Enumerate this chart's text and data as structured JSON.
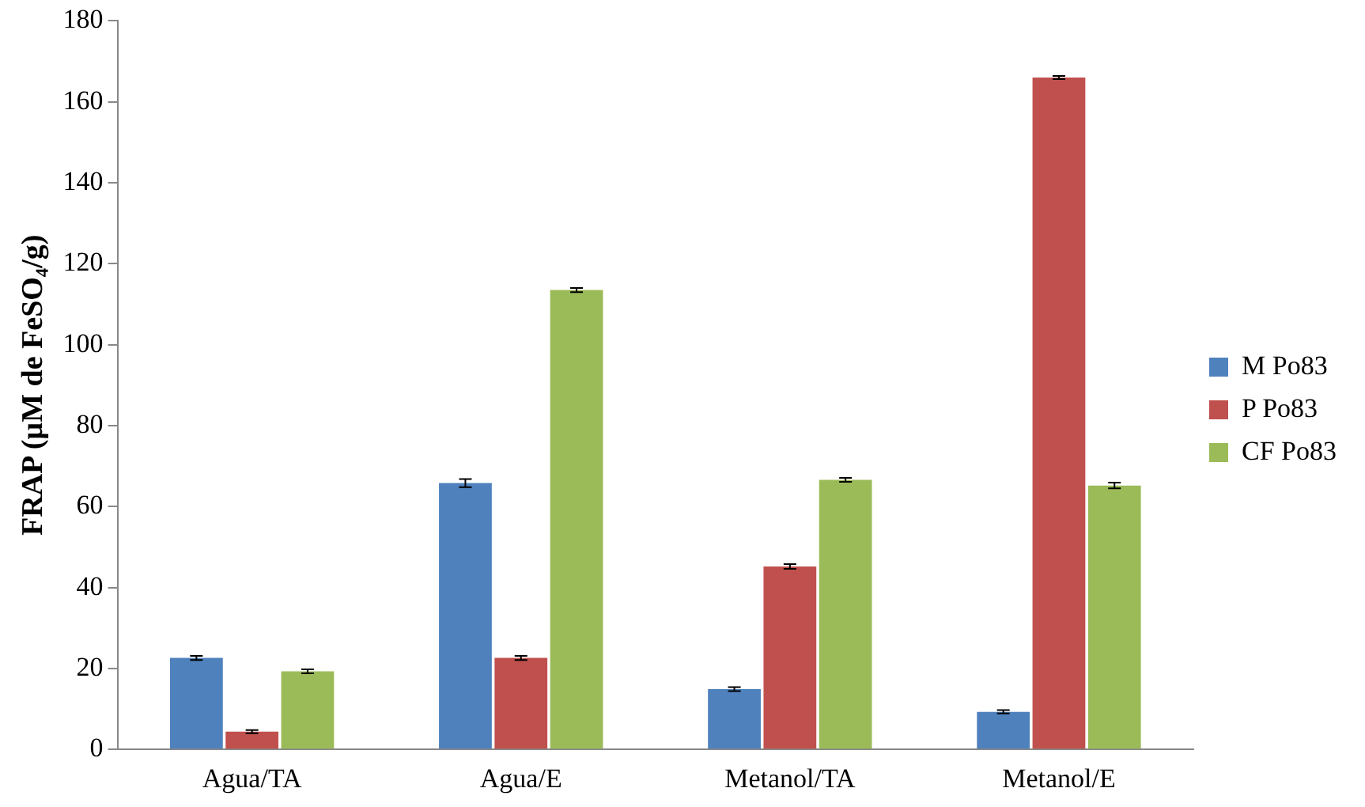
{
  "chart_data": {
    "type": "bar",
    "ylabel": "FRAP (µM de FeSO₄/g)",
    "categories": [
      "Agua/TA",
      "Agua/E",
      "Metanol/TA",
      "Metanol/E"
    ],
    "series": [
      {
        "name": "M Po83",
        "color": "#4f81bd",
        "values": [
          22.6,
          65.8,
          14.9,
          9.3
        ],
        "errors": [
          0.5,
          1,
          0.5,
          0.4
        ]
      },
      {
        "name": "P Po83",
        "color": "#c0504d",
        "values": [
          4.4,
          22.6,
          45.2,
          166
        ],
        "errors": [
          0.4,
          0.5,
          0.6,
          0.4
        ]
      },
      {
        "name": "CF Po83",
        "color": "#9bbb59",
        "values": [
          19.3,
          113.5,
          66.6,
          65.2
        ],
        "errors": [
          0.5,
          0.5,
          0.5,
          0.7
        ]
      }
    ],
    "ylim": [
      0,
      180
    ],
    "yticks": [
      0,
      20,
      40,
      60,
      80,
      100,
      120,
      140,
      160,
      180
    ],
    "grid": false,
    "legend": "right"
  }
}
